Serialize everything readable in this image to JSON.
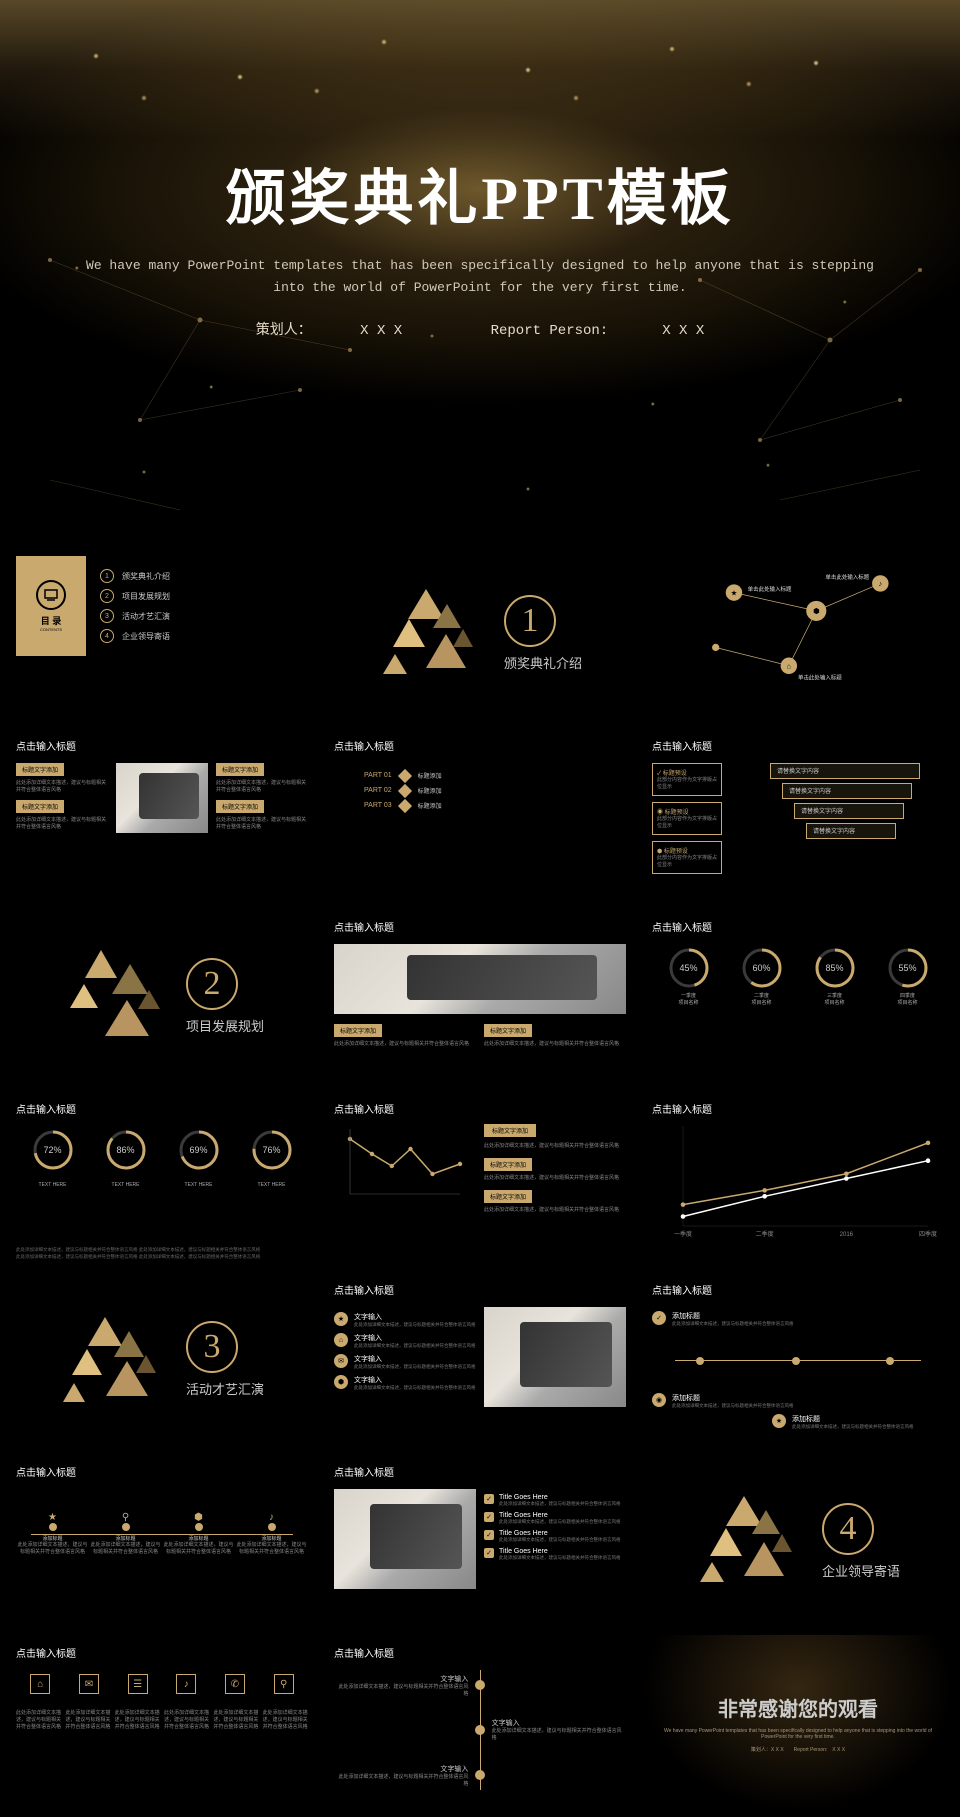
{
  "colors": {
    "gold": "#c9a96e",
    "gold_light": "#e8c878",
    "bg": "#000000",
    "text": "#ffffff",
    "muted": "#888888"
  },
  "hero": {
    "title": "颁奖典礼PPT模板",
    "subtitle": "We have many PowerPoint templates that has been specifically designed to help anyone that is stepping into the world of PowerPoint for the very first time.",
    "planner_label": "策划人：",
    "planner_value": "X X X",
    "reporter_label": "Report Person:",
    "reporter_value": "X X X"
  },
  "toc": {
    "label_cn": "目 录",
    "label_en": "CONTENTS",
    "items": [
      "颁奖典礼介绍",
      "项目发展规划",
      "活动才艺汇演",
      "企业领导寄语"
    ]
  },
  "sections": [
    {
      "num": "1",
      "title": "颁奖典礼介绍"
    },
    {
      "num": "2",
      "title": "项目发展规划"
    },
    {
      "num": "3",
      "title": "活动才艺汇演"
    },
    {
      "num": "4",
      "title": "企业领导寄语"
    }
  ],
  "click_title": "点击输入标题",
  "title_text_add": "标题文字添加",
  "add_title": "添加标题",
  "text_input": "文字输入",
  "lorem_tiny": "此处添加详细文本描述，建议与标题相关并符合整体语言风格",
  "parts": [
    {
      "label": "PART 01",
      "text": "标题添加"
    },
    {
      "label": "PART 02",
      "text": "标题添加"
    },
    {
      "label": "PART 03",
      "text": "标题添加"
    }
  ],
  "ring_sets": {
    "a": [
      {
        "pct": 45,
        "label": "一季度",
        "sub": "项目名称"
      },
      {
        "pct": 60,
        "label": "二季度",
        "sub": "项目名称"
      },
      {
        "pct": 85,
        "label": "三季度",
        "sub": "项目名称"
      },
      {
        "pct": 55,
        "label": "四季度",
        "sub": "项目名称"
      }
    ],
    "b": [
      {
        "pct": 72,
        "label": "TEXT HERE"
      },
      {
        "pct": 86,
        "label": "TEXT HERE"
      },
      {
        "pct": 69,
        "label": "TEXT HERE"
      },
      {
        "pct": 76,
        "label": "TEXT HERE"
      }
    ]
  },
  "line_chart": {
    "type": "line",
    "x": [
      "一季度",
      "二季度",
      "2016",
      "四季度"
    ],
    "series": [
      {
        "color": "#c9a96e",
        "values": [
          18,
          30,
          44,
          70
        ]
      },
      {
        "color": "#ffffff",
        "values": [
          8,
          25,
          40,
          55
        ]
      }
    ],
    "ylim": [
      0,
      80
    ]
  },
  "mini_chart": {
    "type": "line",
    "points": [
      [
        0,
        55
      ],
      [
        20,
        40
      ],
      [
        38,
        28
      ],
      [
        55,
        45
      ],
      [
        75,
        20
      ],
      [
        100,
        30
      ]
    ],
    "color": "#c9a96e",
    "dot_color": "#c9a96e"
  },
  "timeline": {
    "items": [
      "添加标题",
      "添加标题",
      "添加标题",
      "添加标题"
    ]
  },
  "tags": {
    "label": "标题预设",
    "desc": "此部分内容作为文字排版占位显示"
  },
  "checks": [
    "Title Goes Here",
    "Title Goes Here",
    "Title Goes Here",
    "Title Goes Here"
  ],
  "icon_row": [
    "⌂",
    "✉",
    "☰",
    "♪",
    "✆",
    "⚲"
  ],
  "thanks": {
    "title": "非常感谢您的观看",
    "sub": "We have many PowerPoint templates that has been specifically designed to help anyone that is stepping into the world of PowerPoint for the very first time.",
    "line": "策划人：X X X　　Report Person:　X X X"
  },
  "stairs": [
    "请替换文字内容",
    "请替换文字内容",
    "请替换文字内容",
    "请替换文字内容"
  ],
  "nodes": {
    "center": "单击此处输入标题",
    "items": [
      "单击此处输入标题",
      "单击此处输入标题",
      "单击此处输入标题"
    ]
  }
}
